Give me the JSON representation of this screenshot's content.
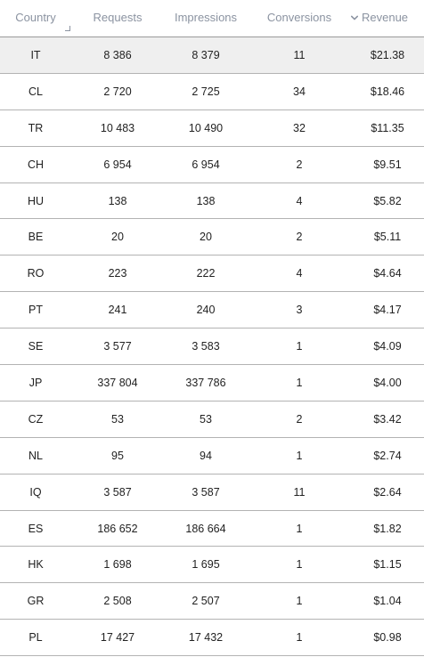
{
  "columns": {
    "country": "Country",
    "requests": "Requests",
    "impressions": "Impressions",
    "conversions": "Conversions",
    "revenue": "Revenue"
  },
  "rows": [
    {
      "country": "IT",
      "requests": "8 386",
      "impressions": "8 379",
      "conversions": "11",
      "revenue": "$21.38"
    },
    {
      "country": "CL",
      "requests": "2 720",
      "impressions": "2 725",
      "conversions": "34",
      "revenue": "$18.46"
    },
    {
      "country": "TR",
      "requests": "10 483",
      "impressions": "10 490",
      "conversions": "32",
      "revenue": "$11.35"
    },
    {
      "country": "CH",
      "requests": "6 954",
      "impressions": "6 954",
      "conversions": "2",
      "revenue": "$9.51"
    },
    {
      "country": "HU",
      "requests": "138",
      "impressions": "138",
      "conversions": "4",
      "revenue": "$5.82"
    },
    {
      "country": "BE",
      "requests": "20",
      "impressions": "20",
      "conversions": "2",
      "revenue": "$5.11"
    },
    {
      "country": "RO",
      "requests": "223",
      "impressions": "222",
      "conversions": "4",
      "revenue": "$4.64"
    },
    {
      "country": "PT",
      "requests": "241",
      "impressions": "240",
      "conversions": "3",
      "revenue": "$4.17"
    },
    {
      "country": "SE",
      "requests": "3 577",
      "impressions": "3 583",
      "conversions": "1",
      "revenue": "$4.09"
    },
    {
      "country": "JP",
      "requests": "337 804",
      "impressions": "337 786",
      "conversions": "1",
      "revenue": "$4.00"
    },
    {
      "country": "CZ",
      "requests": "53",
      "impressions": "53",
      "conversions": "2",
      "revenue": "$3.42"
    },
    {
      "country": "NL",
      "requests": "95",
      "impressions": "94",
      "conversions": "1",
      "revenue": "$2.74"
    },
    {
      "country": "IQ",
      "requests": "3 587",
      "impressions": "3 587",
      "conversions": "11",
      "revenue": "$2.64"
    },
    {
      "country": "ES",
      "requests": "186 652",
      "impressions": "186 664",
      "conversions": "1",
      "revenue": "$1.82"
    },
    {
      "country": "HK",
      "requests": "1 698",
      "impressions": "1 695",
      "conversions": "1",
      "revenue": "$1.15"
    },
    {
      "country": "GR",
      "requests": "2 508",
      "impressions": "2 507",
      "conversions": "1",
      "revenue": "$1.04"
    },
    {
      "country": "PL",
      "requests": "17 427",
      "impressions": "17 432",
      "conversions": "1",
      "revenue": "$0.98"
    }
  ],
  "highlighted_row": 0,
  "sort": {
    "column": "revenue",
    "direction": "descending",
    "icon": "chevron-down-icon"
  },
  "colors": {
    "header_text": "#8b93a1",
    "row_text": "#222222",
    "highlight_bg": "#efefef",
    "divider": "#b3b3b3"
  }
}
